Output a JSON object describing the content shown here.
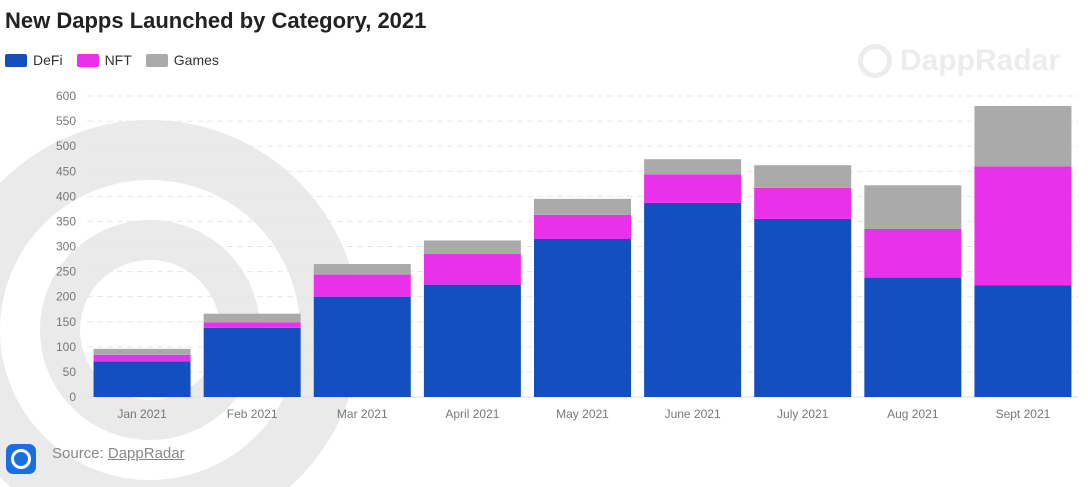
{
  "chart_data": {
    "type": "bar",
    "stacked": true,
    "title": "New Dapps Launched by Category, 2021",
    "categories": [
      "Jan 2021",
      "Feb 2021",
      "Mar 2021",
      "April 2021",
      "May 2021",
      "June 2021",
      "July 2021",
      "Aug 2021",
      "Sept 2021"
    ],
    "series": [
      {
        "name": "DeFi",
        "color": "#144fbf",
        "values": [
          71,
          138,
          200,
          224,
          315,
          387,
          355,
          238,
          223
        ]
      },
      {
        "name": "NFT",
        "color": "#ea31ea",
        "values": [
          13,
          11,
          44,
          61,
          48,
          57,
          62,
          97,
          237
        ]
      },
      {
        "name": "Games",
        "color": "#aaaaaa",
        "values": [
          12,
          17,
          21,
          27,
          32,
          30,
          45,
          87,
          120
        ]
      }
    ],
    "ylim": [
      0,
      600
    ],
    "yticks": [
      0,
      50,
      100,
      150,
      200,
      250,
      300,
      350,
      400,
      450,
      500,
      550,
      600
    ],
    "grid": true,
    "legend": "top-left"
  },
  "watermark": "DappRadar",
  "source": {
    "label": "Source:",
    "link": "DappRadar"
  }
}
